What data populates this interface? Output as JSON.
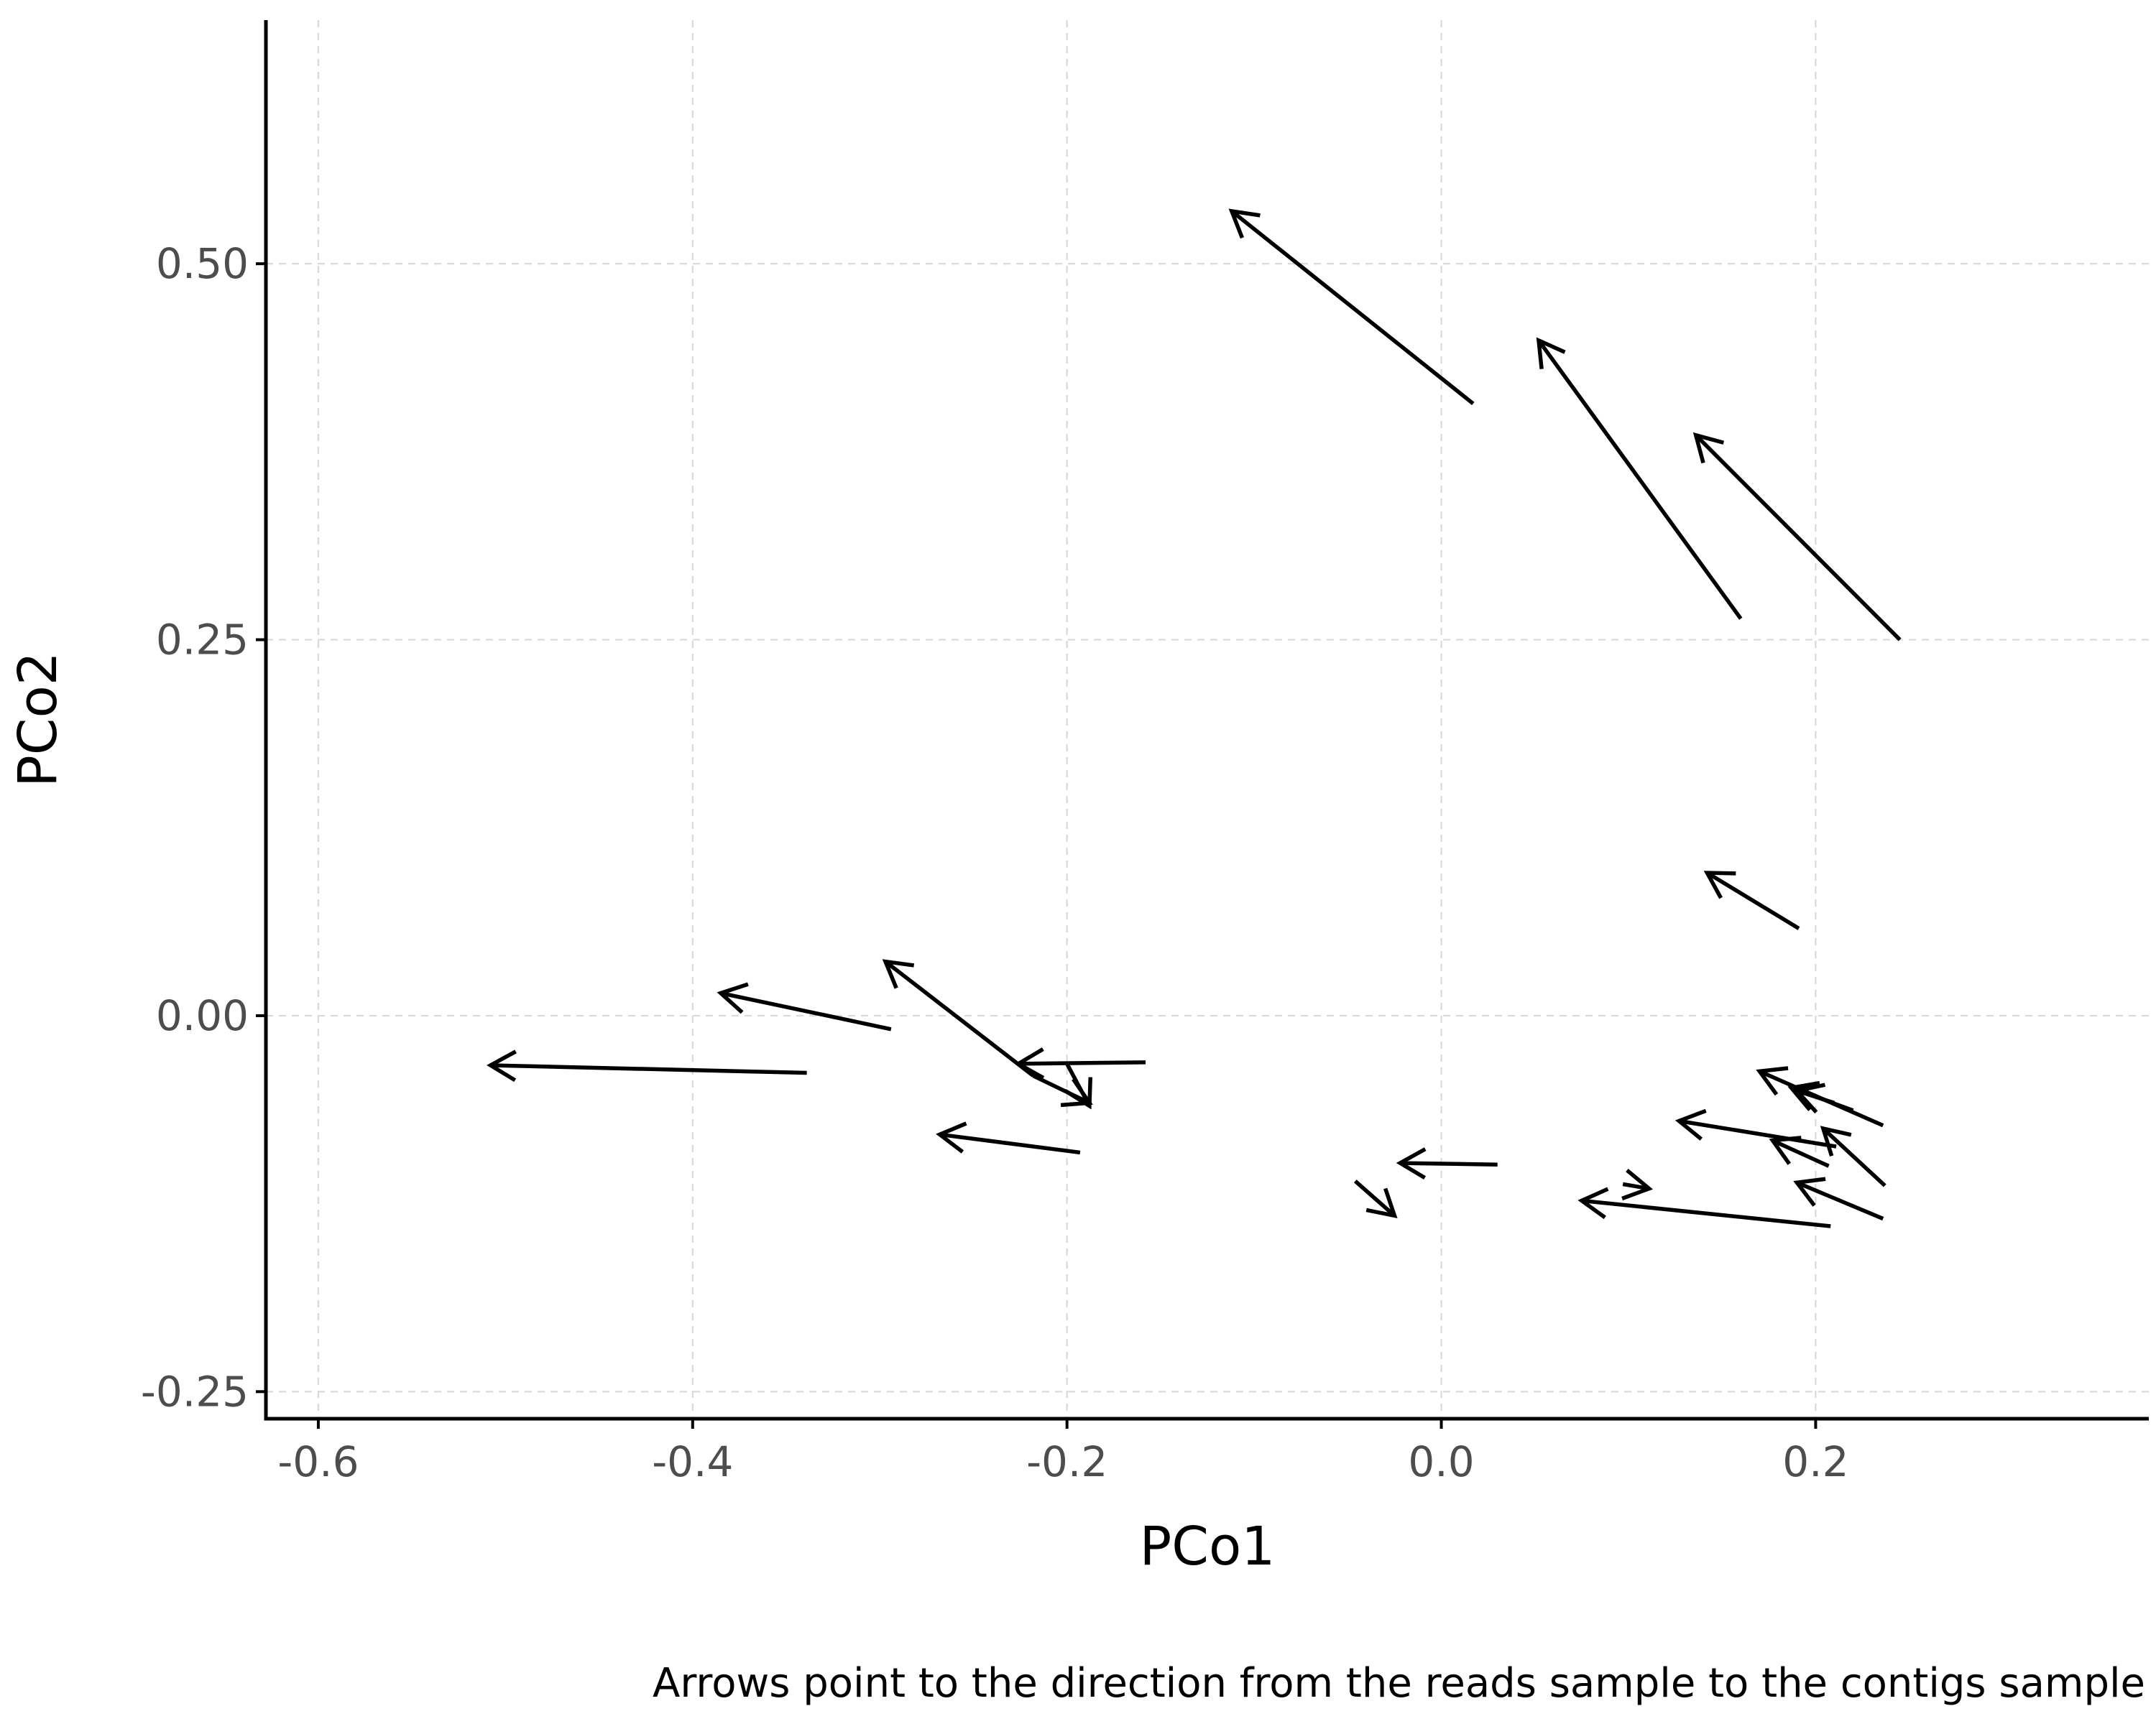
{
  "chart_data": {
    "type": "arrow",
    "title": "",
    "xlabel": "PCo1",
    "ylabel": "PCo2",
    "caption": "Arrows point to the direction from the reads sample to the contigs sample",
    "xlim": [
      -0.628,
      0.378
    ],
    "ylim": [
      -0.268,
      0.662
    ],
    "x_ticks": [
      {
        "value": -0.6,
        "label": "-0.6"
      },
      {
        "value": -0.4,
        "label": "-0.4"
      },
      {
        "value": -0.2,
        "label": "-0.2"
      },
      {
        "value": 0.0,
        "label": "0.0"
      },
      {
        "value": 0.2,
        "label": "0.2"
      }
    ],
    "y_ticks": [
      {
        "value": -0.25,
        "label": "-0.25"
      },
      {
        "value": 0.0,
        "label": "0.00"
      },
      {
        "value": 0.25,
        "label": "0.25"
      },
      {
        "value": 0.5,
        "label": "0.50"
      }
    ],
    "grid": true,
    "arrows": [
      {
        "x_start": 0.017,
        "y_start": 0.407,
        "x_end": -0.112,
        "y_end": 0.535
      },
      {
        "x_start": 0.16,
        "y_start": 0.264,
        "x_end": 0.052,
        "y_end": 0.449
      },
      {
        "x_start": 0.245,
        "y_start": 0.25,
        "x_end": 0.136,
        "y_end": 0.386
      },
      {
        "x_start": 0.191,
        "y_start": 0.058,
        "x_end": 0.142,
        "y_end": 0.095
      },
      {
        "x_start": -0.339,
        "y_start": -0.038,
        "x_end": -0.508,
        "y_end": -0.033
      },
      {
        "x_start": -0.294,
        "y_start": -0.009,
        "x_end": -0.385,
        "y_end": 0.015
      },
      {
        "x_start": -0.218,
        "y_start": -0.04,
        "x_end": -0.297,
        "y_end": 0.036
      },
      {
        "x_start": -0.218,
        "y_start": -0.04,
        "x_end": -0.188,
        "y_end": -0.058
      },
      {
        "x_start": -0.158,
        "y_start": -0.031,
        "x_end": -0.226,
        "y_end": -0.032
      },
      {
        "x_start": -0.2,
        "y_start": -0.032,
        "x_end": -0.188,
        "y_end": -0.06
      },
      {
        "x_start": -0.193,
        "y_start": -0.091,
        "x_end": -0.268,
        "y_end": -0.079
      },
      {
        "x_start": 0.03,
        "y_start": -0.099,
        "x_end": -0.022,
        "y_end": -0.098
      },
      {
        "x_start": -0.046,
        "y_start": -0.11,
        "x_end": -0.025,
        "y_end": -0.133
      },
      {
        "x_start": 0.097,
        "y_start": -0.112,
        "x_end": 0.111,
        "y_end": -0.115
      },
      {
        "x_start": 0.208,
        "y_start": -0.14,
        "x_end": 0.075,
        "y_end": -0.123
      },
      {
        "x_start": 0.211,
        "y_start": -0.087,
        "x_end": 0.127,
        "y_end": -0.07
      },
      {
        "x_start": 0.236,
        "y_start": -0.073,
        "x_end": 0.17,
        "y_end": -0.037
      },
      {
        "x_start": 0.22,
        "y_start": -0.063,
        "x_end": 0.187,
        "y_end": -0.048
      },
      {
        "x_start": 0.21,
        "y_start": -0.058,
        "x_end": 0.19,
        "y_end": -0.05
      },
      {
        "x_start": 0.207,
        "y_start": -0.1,
        "x_end": 0.177,
        "y_end": -0.083
      },
      {
        "x_start": 0.237,
        "y_start": -0.113,
        "x_end": 0.204,
        "y_end": -0.075
      },
      {
        "x_start": 0.236,
        "y_start": -0.135,
        "x_end": 0.19,
        "y_end": -0.111
      }
    ]
  }
}
